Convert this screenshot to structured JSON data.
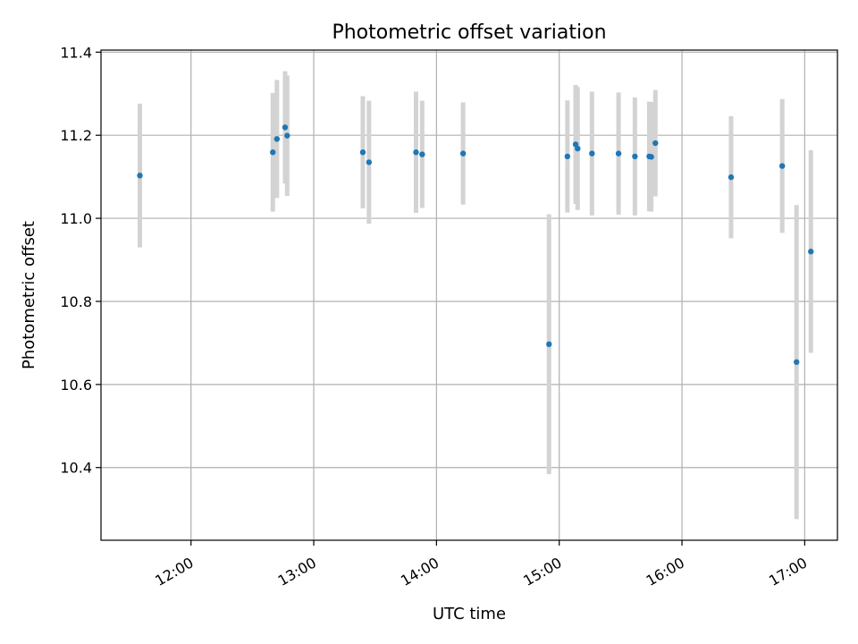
{
  "chart_data": {
    "type": "scatter",
    "title": "Photometric offset variation",
    "xlabel": "UTC time",
    "ylabel": "Photometric offset",
    "xlim": [
      "11:16",
      "17:16"
    ],
    "ylim": [
      10.225,
      11.405
    ],
    "x_ticks": [
      "12:00",
      "13:00",
      "14:00",
      "15:00",
      "16:00",
      "17:00"
    ],
    "y_ticks": [
      10.4,
      10.6,
      10.8,
      11.0,
      11.2,
      11.4
    ],
    "y_tick_labels": [
      "10.4",
      "10.6",
      "10.8",
      "11.0",
      "11.2",
      "11.4"
    ],
    "grid": true,
    "point_color": "#1f77b4",
    "errorbar_color": "#d3d3d3",
    "points": [
      {
        "x": "11:35",
        "y": 11.103,
        "err": 0.173
      },
      {
        "x": "12:40",
        "y": 11.159,
        "err": 0.143
      },
      {
        "x": "12:42",
        "y": 11.191,
        "err": 0.142
      },
      {
        "x": "12:46",
        "y": 11.219,
        "err": 0.135
      },
      {
        "x": "12:47",
        "y": 11.199,
        "err": 0.145
      },
      {
        "x": "13:24",
        "y": 11.159,
        "err": 0.135
      },
      {
        "x": "13:27",
        "y": 11.135,
        "err": 0.148
      },
      {
        "x": "13:50",
        "y": 11.159,
        "err": 0.146
      },
      {
        "x": "13:53",
        "y": 11.154,
        "err": 0.129
      },
      {
        "x": "14:13",
        "y": 11.156,
        "err": 0.123
      },
      {
        "x": "14:55",
        "y": 10.697,
        "err": 0.313
      },
      {
        "x": "15:04",
        "y": 11.149,
        "err": 0.135
      },
      {
        "x": "15:08",
        "y": 11.178,
        "err": 0.143
      },
      {
        "x": "15:09",
        "y": 11.168,
        "err": 0.148
      },
      {
        "x": "15:16",
        "y": 11.156,
        "err": 0.149
      },
      {
        "x": "15:29",
        "y": 11.156,
        "err": 0.147
      },
      {
        "x": "15:37",
        "y": 11.149,
        "err": 0.142
      },
      {
        "x": "15:44",
        "y": 11.149,
        "err": 0.132
      },
      {
        "x": "15:45",
        "y": 11.148,
        "err": 0.132
      },
      {
        "x": "15:47",
        "y": 11.181,
        "err": 0.128
      },
      {
        "x": "16:24",
        "y": 11.099,
        "err": 0.147
      },
      {
        "x": "16:49",
        "y": 11.126,
        "err": 0.161
      },
      {
        "x": "16:56",
        "y": 10.654,
        "err": 0.378
      },
      {
        "x": "17:03",
        "y": 10.92,
        "err": 0.244
      }
    ]
  }
}
